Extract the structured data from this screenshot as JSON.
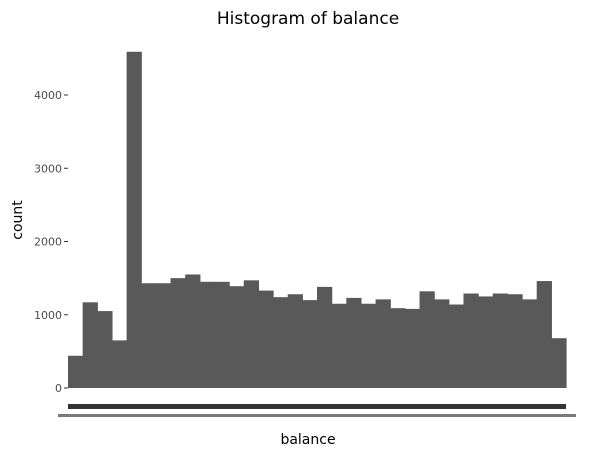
{
  "chart_data": {
    "type": "bar",
    "title": "Histogram of balance",
    "xlabel": "balance",
    "ylabel": "count",
    "ylim": [
      0,
      4600
    ],
    "y_ticks": [
      0,
      1000,
      2000,
      3000,
      4000
    ],
    "y_tick_labels": [
      "0",
      "1000",
      "2000",
      "3000",
      "4000"
    ],
    "grid": false,
    "legend": "none",
    "bar_color": "#595959",
    "values": [
      440,
      1170,
      1050,
      650,
      4590,
      1430,
      1430,
      1500,
      1550,
      1450,
      1450,
      1390,
      1470,
      1330,
      1240,
      1280,
      1200,
      1380,
      1150,
      1230,
      1150,
      1210,
      1090,
      1080,
      1320,
      1210,
      1140,
      1290,
      1250,
      1290,
      1280,
      1210,
      1460,
      680
    ]
  }
}
